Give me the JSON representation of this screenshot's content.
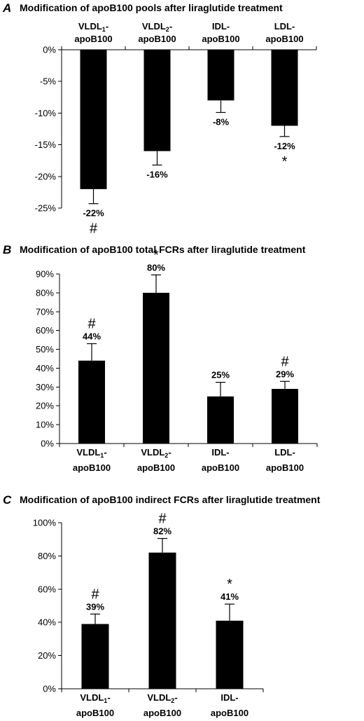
{
  "chart_data": [
    {
      "type": "bar",
      "panel": "A",
      "title": "Modification of apoB100 pools after liraglutide treatment",
      "categories": [
        {
          "main": "VLDL",
          "sub": "1",
          "rest": "-",
          "line2": "apoB100"
        },
        {
          "main": "VLDL",
          "sub": "2",
          "rest": "-",
          "line2": "apoB100"
        },
        {
          "main": "IDL",
          "sub": "",
          "rest": "-",
          "line2": "apoB100"
        },
        {
          "main": "LDL",
          "sub": "",
          "rest": "-",
          "line2": "apoB100"
        }
      ],
      "values": [
        -22,
        -16,
        -8,
        -12
      ],
      "errors": [
        2.3,
        2.2,
        1.9,
        1.7
      ],
      "data_labels": [
        "-22%",
        "-16%",
        "-8%",
        "-12%"
      ],
      "significance": [
        "#",
        "",
        "",
        "*"
      ],
      "ylim": [
        -25,
        0
      ],
      "yticks": [
        0,
        -5,
        -10,
        -15,
        -20,
        -25
      ],
      "ytick_labels": [
        "0%",
        "-5%",
        "-10%",
        "-15%",
        "-20%",
        "-25%"
      ],
      "category_axis_position": "top",
      "grid": false,
      "bar_color": "#000000"
    },
    {
      "type": "bar",
      "panel": "B",
      "title": "Modification of apoB100 total FCRs after liraglutide treatment",
      "categories": [
        {
          "main": "VLDL",
          "sub": "1",
          "rest": "-",
          "line2": "apoB100"
        },
        {
          "main": "VLDL",
          "sub": "2",
          "rest": "-",
          "line2": "apoB100"
        },
        {
          "main": "IDL",
          "sub": "",
          "rest": "-",
          "line2": "apoB100"
        },
        {
          "main": "LDL",
          "sub": "",
          "rest": "-",
          "line2": "apoB100"
        }
      ],
      "values": [
        44,
        80,
        25,
        29
      ],
      "errors": [
        9,
        9.5,
        7.5,
        4
      ],
      "data_labels": [
        "44%",
        "80%",
        "25%",
        "29%"
      ],
      "significance": [
        "#",
        "*",
        "",
        "#"
      ],
      "ylim": [
        0,
        90
      ],
      "yticks": [
        0,
        10,
        20,
        30,
        40,
        50,
        60,
        70,
        80,
        90
      ],
      "ytick_labels": [
        "0%",
        "10%",
        "20%",
        "30%",
        "40%",
        "50%",
        "60%",
        "70%",
        "80%",
        "90%"
      ],
      "category_axis_position": "bottom",
      "grid": false,
      "bar_color": "#000000"
    },
    {
      "type": "bar",
      "panel": "C",
      "title": "Modification of apoB100 indirect FCRs after liraglutide treatment",
      "categories": [
        {
          "main": "VLDL",
          "sub": "1",
          "rest": "-",
          "line2": "apoB100"
        },
        {
          "main": "VLDL",
          "sub": "2",
          "rest": "-",
          "line2": "apoB100"
        },
        {
          "main": "IDL",
          "sub": "",
          "rest": "-",
          "line2": "apoB100"
        }
      ],
      "values": [
        39,
        82,
        41
      ],
      "errors": [
        6,
        8.5,
        10
      ],
      "data_labels": [
        "39%",
        "82%",
        "41%"
      ],
      "significance": [
        "#",
        "#",
        "*"
      ],
      "ylim": [
        0,
        100
      ],
      "yticks": [
        0,
        20,
        40,
        60,
        80,
        100
      ],
      "ytick_labels": [
        "0%",
        "20%",
        "40%",
        "60%",
        "80%",
        "100%"
      ],
      "category_axis_position": "bottom",
      "grid": false,
      "bar_color": "#000000"
    }
  ]
}
